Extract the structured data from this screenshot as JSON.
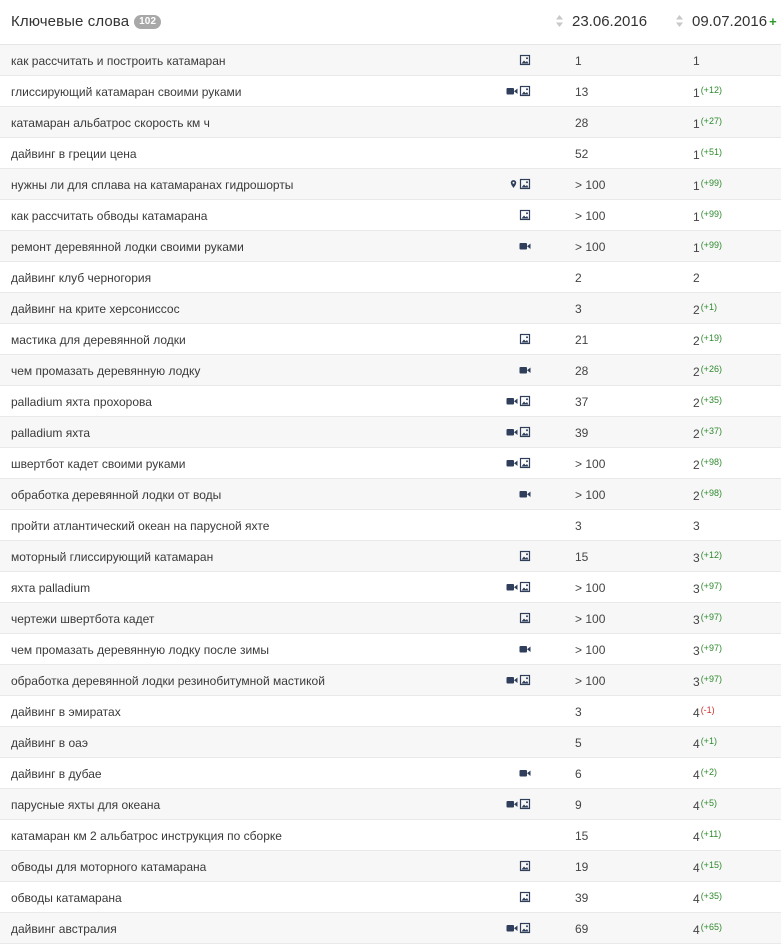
{
  "header": {
    "title": "Ключевые слова",
    "count": "102",
    "date1": "23.06.2016",
    "date2": "09.07.2016",
    "add_symbol": "+"
  },
  "colors": {
    "positive": "#2e8a2e",
    "negative": "#d0312d",
    "icon": "#2f3e5a"
  },
  "rows": [
    {
      "keyword": "как рассчитать и построить катамаран",
      "icons": [
        "image-icon"
      ],
      "pos1": "1",
      "pos2": "1",
      "change": ""
    },
    {
      "keyword": "глиссирующий катамаран своими руками",
      "icons": [
        "video-icon",
        "image-icon"
      ],
      "pos1": "13",
      "pos2": "1",
      "change": "(+12)"
    },
    {
      "keyword": "катамаран альбатрос скорость км ч",
      "icons": [],
      "pos1": "28",
      "pos2": "1",
      "change": "(+27)"
    },
    {
      "keyword": "дайвинг в греции цена",
      "icons": [],
      "pos1": "52",
      "pos2": "1",
      "change": "(+51)"
    },
    {
      "keyword": "нужны ли для сплава на катамаранах гидрошорты",
      "icons": [
        "map-pin-icon",
        "image-icon"
      ],
      "pos1": "> 100",
      "pos2": "1",
      "change": "(+99)"
    },
    {
      "keyword": "как рассчитать обводы катамарана",
      "icons": [
        "image-icon"
      ],
      "pos1": "> 100",
      "pos2": "1",
      "change": "(+99)"
    },
    {
      "keyword": "ремонт деревянной лодки своими руками",
      "icons": [
        "video-icon"
      ],
      "pos1": "> 100",
      "pos2": "1",
      "change": "(+99)"
    },
    {
      "keyword": "дайвинг клуб черногория",
      "icons": [],
      "pos1": "2",
      "pos2": "2",
      "change": ""
    },
    {
      "keyword": "дайвинг на крите херсониссос",
      "icons": [],
      "pos1": "3",
      "pos2": "2",
      "change": "(+1)"
    },
    {
      "keyword": "мастика для деревянной лодки",
      "icons": [
        "image-icon"
      ],
      "pos1": "21",
      "pos2": "2",
      "change": "(+19)"
    },
    {
      "keyword": "чем промазать деревянную лодку",
      "icons": [
        "video-icon"
      ],
      "pos1": "28",
      "pos2": "2",
      "change": "(+26)"
    },
    {
      "keyword": "palladium яхта прохорова",
      "icons": [
        "video-icon",
        "image-icon"
      ],
      "pos1": "37",
      "pos2": "2",
      "change": "(+35)"
    },
    {
      "keyword": "palladium яхта",
      "icons": [
        "video-icon",
        "image-icon"
      ],
      "pos1": "39",
      "pos2": "2",
      "change": "(+37)"
    },
    {
      "keyword": "швертбот кадет своими руками",
      "icons": [
        "video-icon",
        "image-icon"
      ],
      "pos1": "> 100",
      "pos2": "2",
      "change": "(+98)"
    },
    {
      "keyword": "обработка деревянной лодки от воды",
      "icons": [
        "video-icon"
      ],
      "pos1": "> 100",
      "pos2": "2",
      "change": "(+98)"
    },
    {
      "keyword": "пройти атлантический океан на парусной яхте",
      "icons": [],
      "pos1": "3",
      "pos2": "3",
      "change": ""
    },
    {
      "keyword": "моторный глиссирующий катамаран",
      "icons": [
        "image-icon"
      ],
      "pos1": "15",
      "pos2": "3",
      "change": "(+12)"
    },
    {
      "keyword": "яхта palladium",
      "icons": [
        "video-icon",
        "image-icon"
      ],
      "pos1": "> 100",
      "pos2": "3",
      "change": "(+97)"
    },
    {
      "keyword": "чертежи швертбота кадет",
      "icons": [
        "image-icon"
      ],
      "pos1": "> 100",
      "pos2": "3",
      "change": "(+97)"
    },
    {
      "keyword": "чем промазать деревянную лодку после зимы",
      "icons": [
        "video-icon"
      ],
      "pos1": "> 100",
      "pos2": "3",
      "change": "(+97)"
    },
    {
      "keyword": "обработка деревянной лодки резинобитумной мастикой",
      "icons": [
        "video-icon",
        "image-icon"
      ],
      "pos1": "> 100",
      "pos2": "3",
      "change": "(+97)"
    },
    {
      "keyword": "дайвинг в эмиратах",
      "icons": [],
      "pos1": "3",
      "pos2": "4",
      "change": "(-1)"
    },
    {
      "keyword": "дайвинг в оаэ",
      "icons": [],
      "pos1": "5",
      "pos2": "4",
      "change": "(+1)"
    },
    {
      "keyword": "дайвинг в дубае",
      "icons": [
        "video-icon"
      ],
      "pos1": "6",
      "pos2": "4",
      "change": "(+2)"
    },
    {
      "keyword": "парусные яхты для океана",
      "icons": [
        "video-icon",
        "image-icon"
      ],
      "pos1": "9",
      "pos2": "4",
      "change": "(+5)"
    },
    {
      "keyword": "катамаран км 2 альбатрос инструкция по сборке",
      "icons": [],
      "pos1": "15",
      "pos2": "4",
      "change": "(+11)"
    },
    {
      "keyword": "обводы для моторного катамарана",
      "icons": [
        "image-icon"
      ],
      "pos1": "19",
      "pos2": "4",
      "change": "(+15)"
    },
    {
      "keyword": "обводы катамарана",
      "icons": [
        "image-icon"
      ],
      "pos1": "39",
      "pos2": "4",
      "change": "(+35)"
    },
    {
      "keyword": "дайвинг австралия",
      "icons": [
        "video-icon",
        "image-icon"
      ],
      "pos1": "69",
      "pos2": "4",
      "change": "(+65)"
    }
  ]
}
